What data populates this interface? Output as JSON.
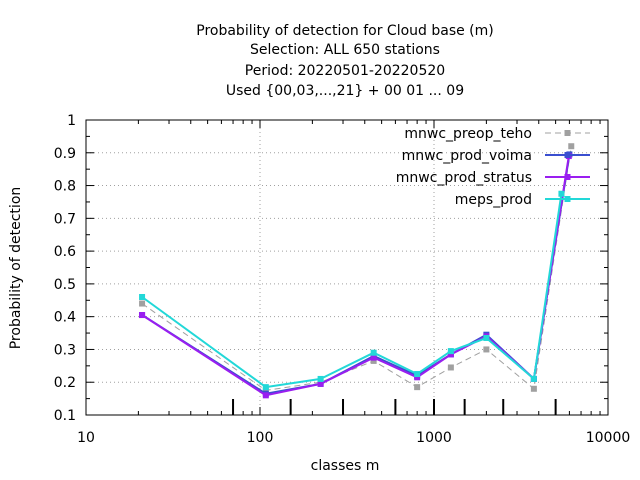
{
  "chart_data": {
    "type": "line",
    "title_lines": [
      "Probability of detection  for Cloud base (m)",
      "Selection: ALL    650 stations",
      "Period: 20220501-20220520",
      "Used {00,03,...,21} + 00 01 ... 09"
    ],
    "xlabel": "classes m",
    "ylabel": "Probability of detection",
    "x_scale": "log",
    "xlim": [
      10,
      10000
    ],
    "ylim": [
      0.1,
      1
    ],
    "x_ticks": [
      10,
      100,
      1000,
      10000
    ],
    "x_tick_labels": [
      "10",
      "100",
      "1000",
      "10000"
    ],
    "y_ticks": [
      0.1,
      0.2,
      0.3,
      0.4,
      0.5,
      0.6,
      0.7,
      0.8,
      0.9,
      1
    ],
    "y_tick_labels": [
      "0.1",
      "0.2",
      "0.3",
      "0.4",
      "0.5",
      "0.6",
      "0.7",
      "0.8",
      "0.9",
      "1"
    ],
    "grid": true,
    "legend_position": "top-right",
    "class_boundaries": [
      70,
      150,
      300,
      600,
      1000,
      1500,
      2500,
      5000
    ],
    "series": [
      {
        "name": "mnwc_preop_teho",
        "color": "#a0a0a0",
        "dash": true,
        "x": [
          21,
          108,
          223,
          450,
          800,
          1250,
          2000,
          3750,
          6150
        ],
        "y": [
          0.44,
          0.175,
          0.2,
          0.265,
          0.185,
          0.245,
          0.3,
          0.18,
          0.92
        ]
      },
      {
        "name": "mnwc_prod_voima",
        "color": "#3a4fd0",
        "dash": false,
        "x": [
          21,
          108,
          223,
          450,
          800,
          1250,
          2000,
          3750,
          6000
        ],
        "y": [
          0.405,
          0.165,
          0.195,
          0.28,
          0.22,
          0.285,
          0.345,
          0.21,
          0.895
        ]
      },
      {
        "name": "mnwc_prod_stratus",
        "color": "#9a1ef0",
        "dash": false,
        "x": [
          21,
          108,
          223,
          450,
          800,
          1250,
          2000,
          3750,
          5950
        ],
        "y": [
          0.405,
          0.16,
          0.195,
          0.275,
          0.215,
          0.285,
          0.34,
          0.21,
          0.89
        ]
      },
      {
        "name": "meps_prod",
        "color": "#22d8d8",
        "dash": false,
        "x": [
          21,
          108,
          223,
          450,
          800,
          1250,
          2000,
          3750,
          5400
        ],
        "y": [
          0.46,
          0.185,
          0.21,
          0.29,
          0.225,
          0.295,
          0.335,
          0.21,
          0.775
        ]
      }
    ]
  }
}
